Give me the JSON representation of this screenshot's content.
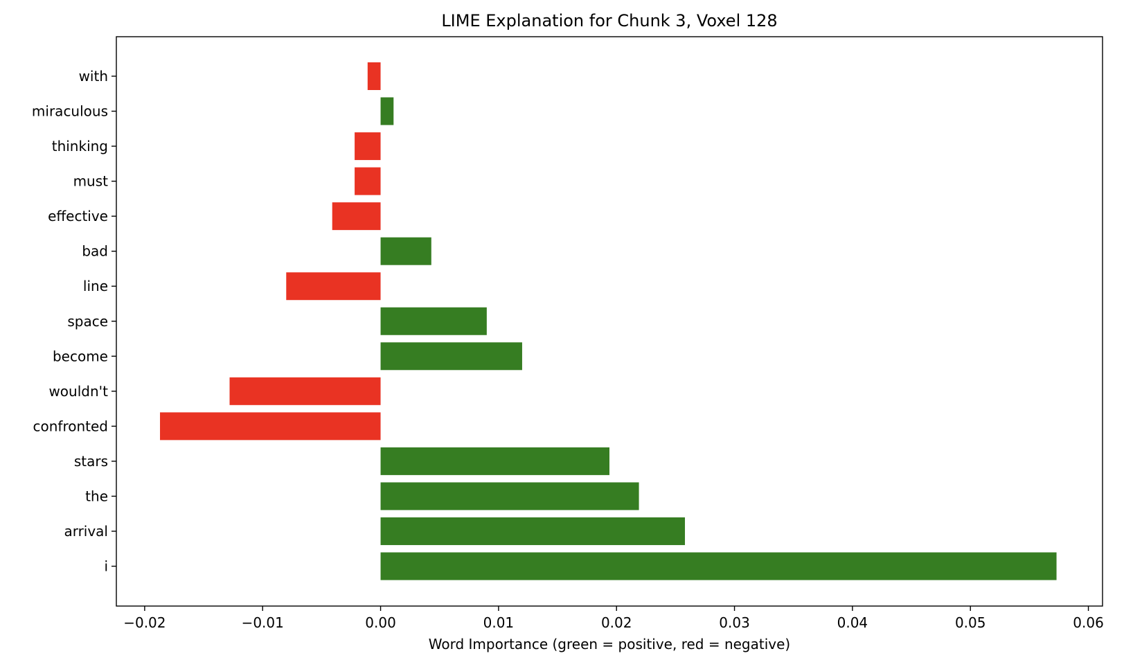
{
  "chart_data": {
    "type": "bar",
    "orientation": "horizontal",
    "title": "LIME Explanation for Chunk 3, Voxel 128",
    "xlabel": "Word Importance (green = positive, red = negative)",
    "ylabel": "",
    "xlim": [
      -0.0224,
      0.0612
    ],
    "x_ticks": [
      -0.02,
      -0.01,
      0.0,
      0.01,
      0.02,
      0.03,
      0.04,
      0.05,
      0.06
    ],
    "x_tick_labels": [
      "−0.02",
      "−0.01",
      "0.00",
      "0.01",
      "0.02",
      "0.03",
      "0.04",
      "0.05",
      "0.06"
    ],
    "categories": [
      "with",
      "miraculous",
      "thinking",
      "must",
      "effective",
      "bad",
      "line",
      "space",
      "become",
      "wouldn't",
      "confronted",
      "stars",
      "the",
      "arrival",
      "i"
    ],
    "values": [
      -0.0011,
      0.0011,
      -0.0022,
      -0.0022,
      -0.0041,
      0.0043,
      -0.008,
      0.009,
      0.012,
      -0.0128,
      -0.0187,
      0.0194,
      0.0219,
      0.0258,
      0.0573
    ],
    "colors": {
      "positive": "#367d22",
      "negative": "#e93323"
    },
    "grid": false,
    "legend": "none"
  }
}
